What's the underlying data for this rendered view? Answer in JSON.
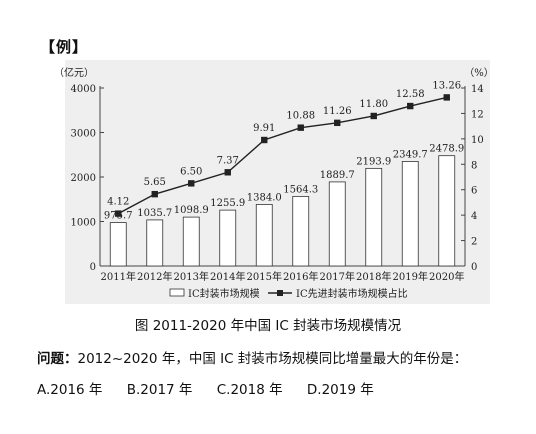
{
  "heading": "【例】",
  "chart_data": {
    "type": "bar+line",
    "categories": [
      "2011年",
      "2012年",
      "2013年",
      "2014年",
      "2015年",
      "2016年",
      "2017年",
      "2018年",
      "2019年",
      "2020年"
    ],
    "series": [
      {
        "name": "IC封装市场规模",
        "type": "bar",
        "axis": "left",
        "values": [
          975.7,
          1035.7,
          1098.9,
          1255.9,
          1384.0,
          1564.3,
          1889.7,
          2193.9,
          2349.7,
          2478.9
        ],
        "labels": [
          "975.7",
          "1035.7",
          "1098.9",
          "1255.9",
          "1384.0",
          "1564.3",
          "1889.7",
          "2193.9",
          "2349.7",
          "2478.9"
        ]
      },
      {
        "name": "IC先进封装市场规模占比",
        "type": "line",
        "axis": "right",
        "values": [
          4.12,
          5.65,
          6.5,
          7.37,
          9.91,
          10.88,
          11.26,
          11.8,
          12.58,
          13.26
        ],
        "labels": [
          "4.12",
          "5.65",
          "6.50",
          "7.37",
          "9.91",
          "10.88",
          "11.26",
          "11.80",
          "12.58",
          "13.26"
        ]
      }
    ],
    "ylabel_left": "（亿元）",
    "ylabel_right": "（%）",
    "ylim_left": [
      0,
      4000
    ],
    "yticks_left": [
      "0",
      "1000",
      "2000",
      "3000",
      "4000"
    ],
    "ylim_right": [
      0,
      14
    ],
    "yticks_right": [
      "0",
      "2",
      "4",
      "6",
      "8",
      "10",
      "12",
      "14"
    ],
    "grid": false,
    "legend_position": "bottom"
  },
  "caption": "图 2011-2020 年中国 IC 封装市场规模情况",
  "question": {
    "label": "问题：",
    "text": "2012~2020 年，中国 IC 封装市场规模同比增量最大的年份是："
  },
  "options": [
    "A.2016 年",
    "B.2017 年",
    "C.2018 年",
    "D.2019 年"
  ],
  "colors": {
    "bar_fill": "#ffffff",
    "line": "#222222",
    "panel_bg": "#efefef",
    "axis": "#444444"
  }
}
